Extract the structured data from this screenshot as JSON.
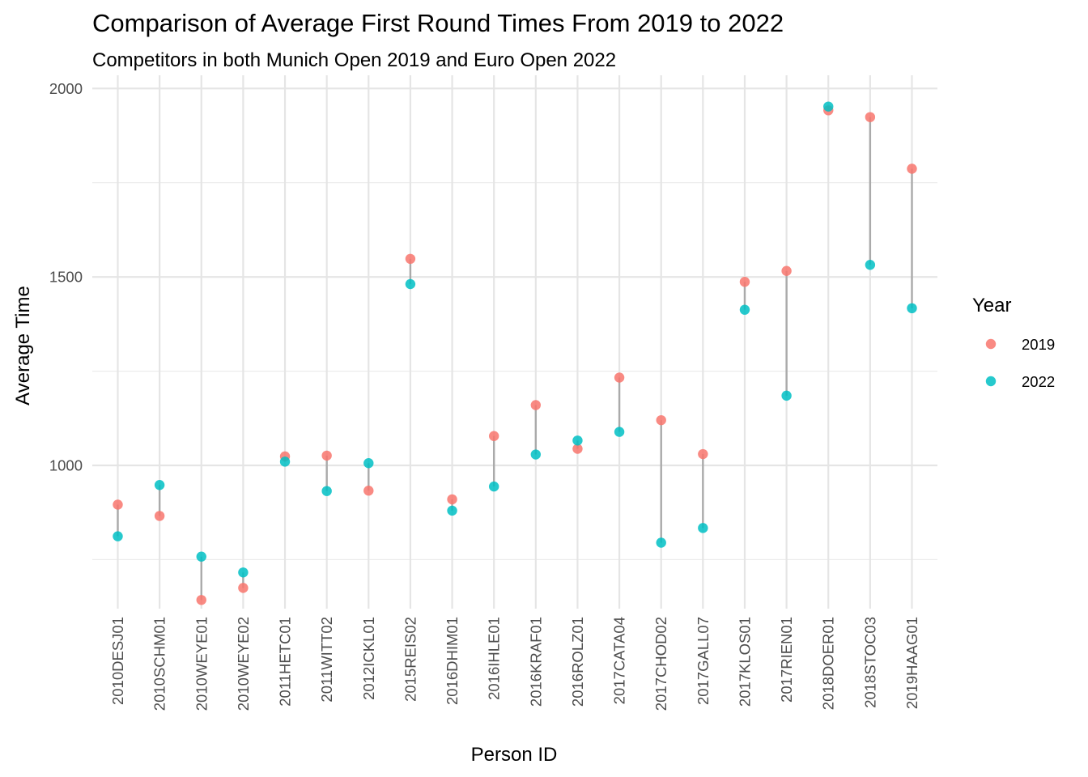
{
  "chart_data": {
    "type": "scatter",
    "title": "Comparison of Average First Round Times From 2019 to 2022",
    "subtitle": "Competitors in both Munich Open 2019 and Euro Open 2022",
    "xlabel": "Person ID",
    "ylabel": "Average Time",
    "ylim": [
      620,
      2035
    ],
    "yticks": [
      1000,
      1500,
      2000
    ],
    "grid": true,
    "legend_position": "right",
    "legend_title": "Year",
    "categories": [
      "2010DESJ01",
      "2010SCHM01",
      "2010WEYE01",
      "2010WEYE02",
      "2011HETC01",
      "2011WITT02",
      "2012ICKL01",
      "2015REIS02",
      "2016DHIM01",
      "2016IHLE01",
      "2016KRAF01",
      "2016ROLZ01",
      "2017CATA04",
      "2017CHOD02",
      "2017GALL07",
      "2017KLOS01",
      "2017RIEN01",
      "2018DOER01",
      "2018STOC03",
      "2019HAAG01"
    ],
    "series": [
      {
        "name": "2019",
        "color": "#F8766D",
        "values": [
          896,
          866,
          643,
          675,
          1024,
          1026,
          933,
          1548,
          910,
          1078,
          1160,
          1044,
          1233,
          1120,
          1030,
          1487,
          1516,
          1942,
          1924,
          1787
        ]
      },
      {
        "name": "2022",
        "color": "#00BFC4",
        "values": [
          812,
          948,
          758,
          716,
          1010,
          932,
          1006,
          1481,
          880,
          944,
          1029,
          1066,
          1089,
          795,
          834,
          1413,
          1185,
          1952,
          1532,
          1417
        ]
      }
    ],
    "segment_color": "#aaaaaa"
  }
}
